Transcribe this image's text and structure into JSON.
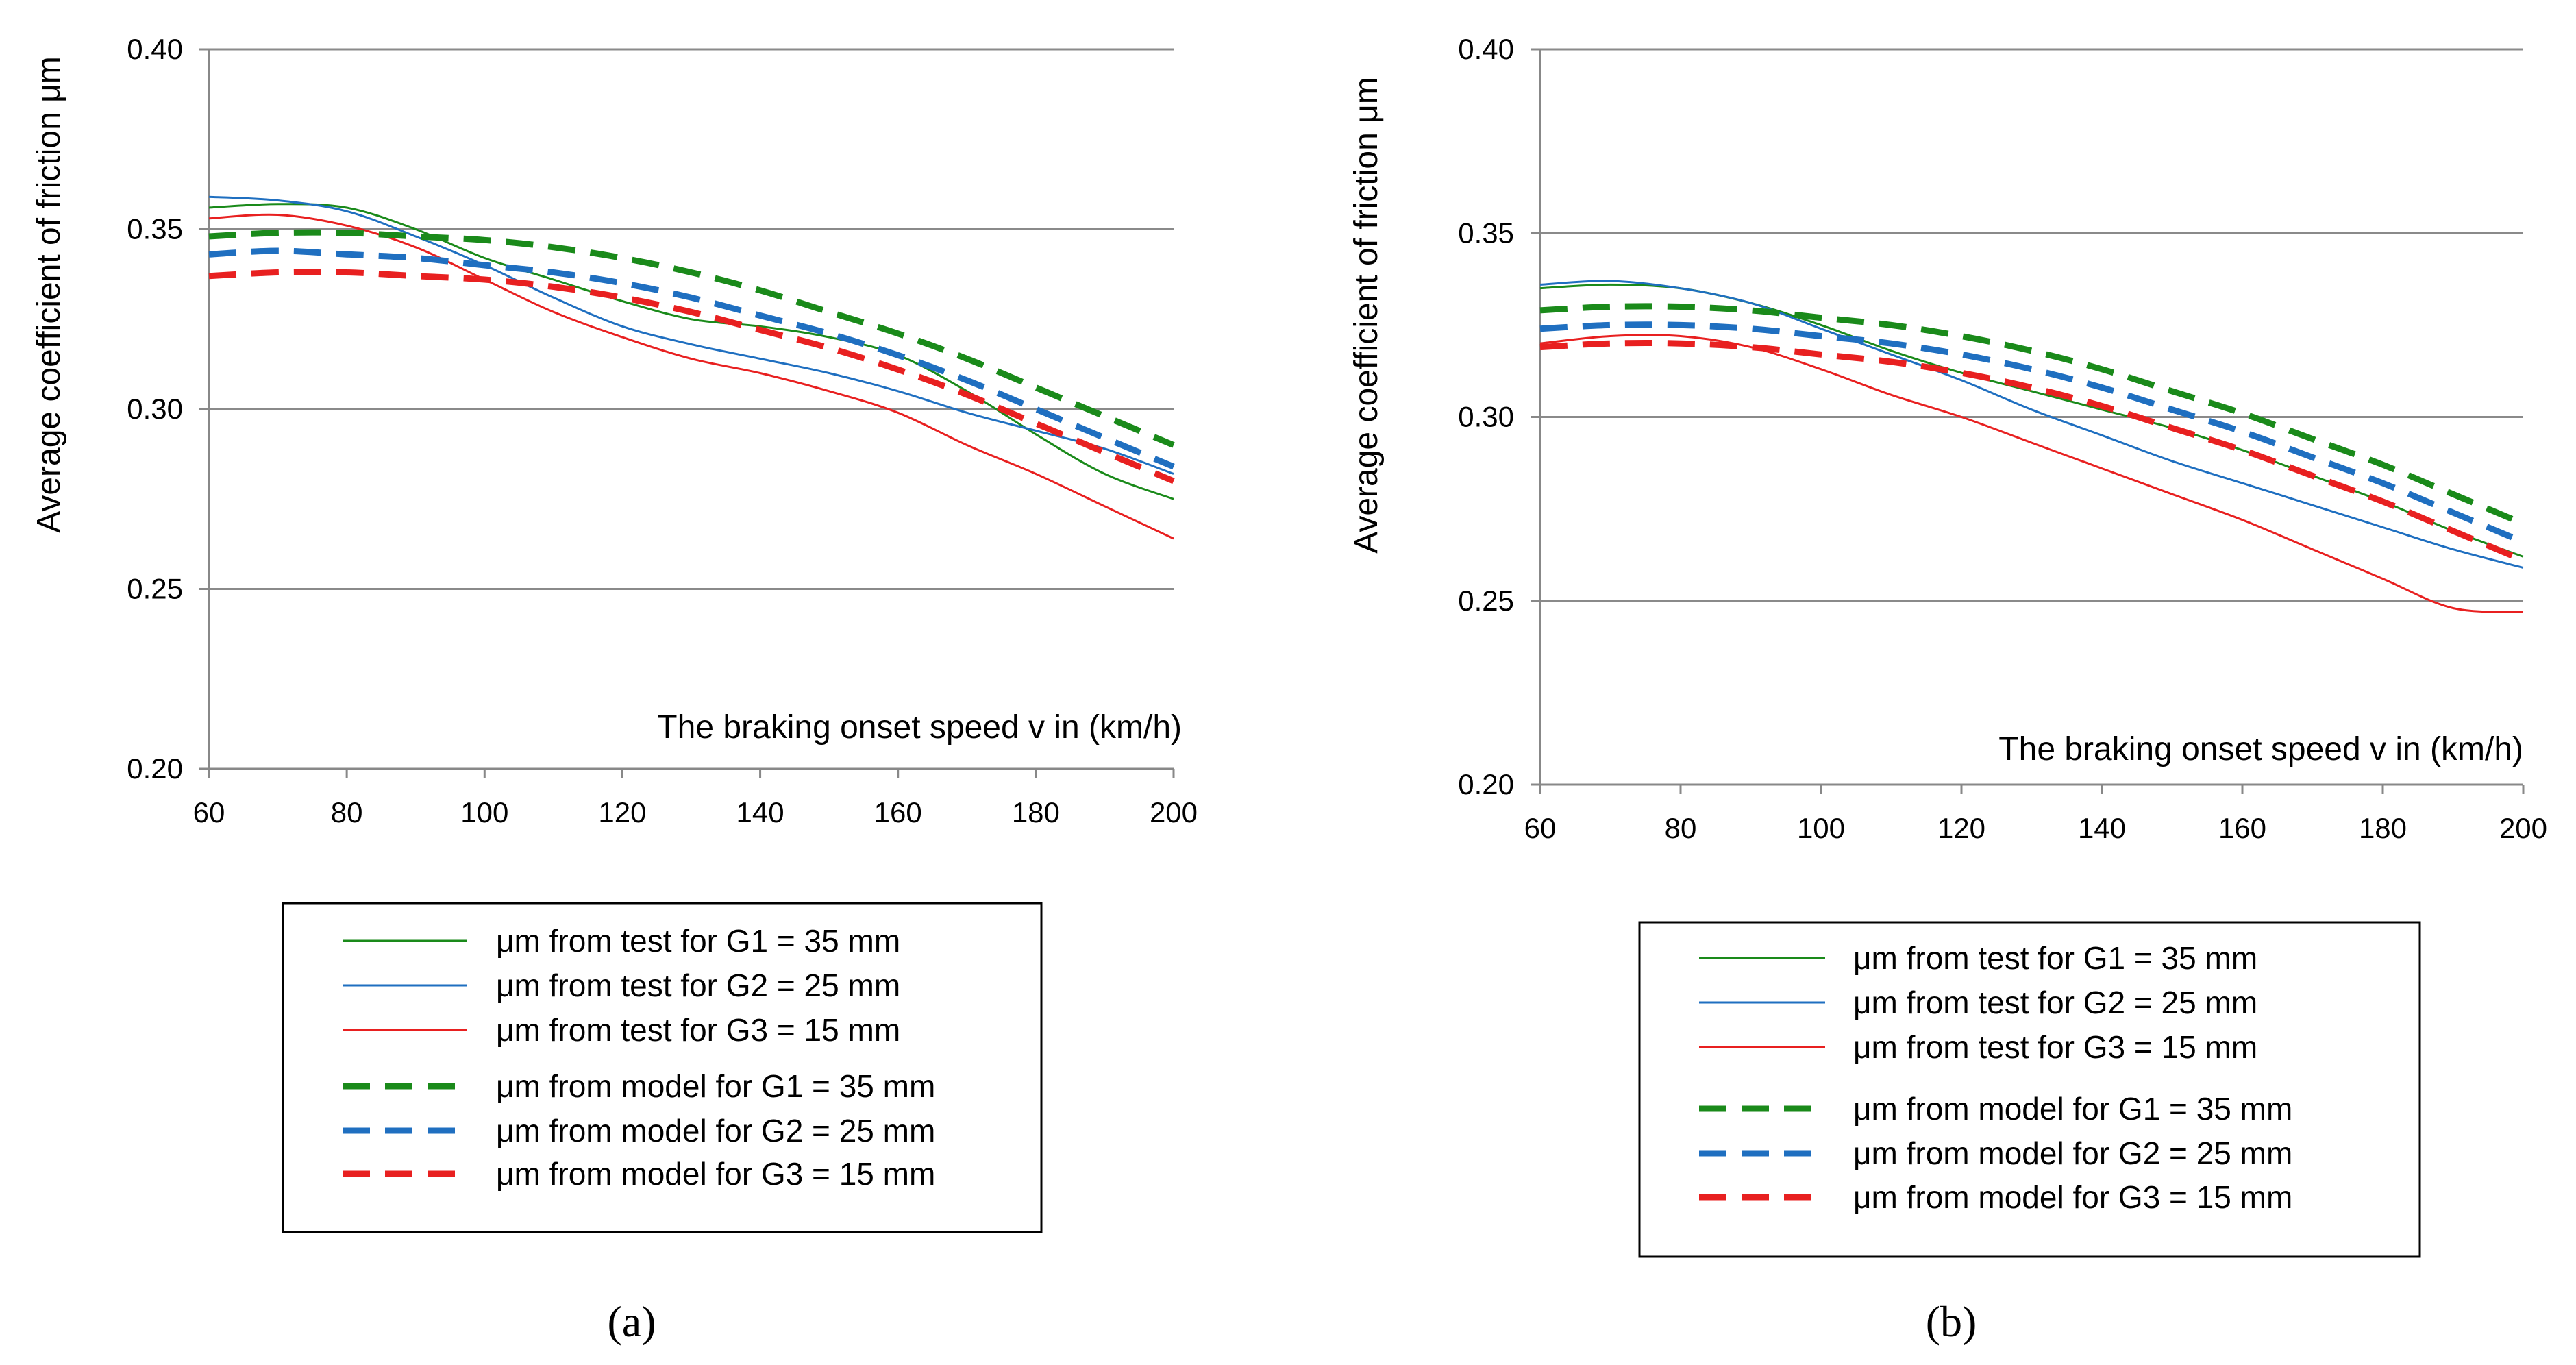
{
  "chart_data": [
    {
      "panel_label": "(a)",
      "type": "line",
      "xlabel": "The braking onset speed v in (km/h)",
      "ylabel": "Average coefficient of friction μm",
      "xlim": [
        60,
        200
      ],
      "ylim": [
        0.2,
        0.4
      ],
      "x_ticks": [
        "60",
        "80",
        "100",
        "120",
        "140",
        "160",
        "180",
        "200"
      ],
      "y_ticks": [
        "0.20",
        "0.25",
        "0.30",
        "0.35",
        "0.40"
      ],
      "grid": "horizontal",
      "series": [
        {
          "name": "μm from test for G1 = 35 mm",
          "color": "#1a8a1a",
          "dash": false,
          "x": [
            60,
            70,
            80,
            90,
            100,
            110,
            120,
            130,
            140,
            150,
            160,
            170,
            180,
            190,
            200
          ],
          "y": [
            0.356,
            0.357,
            0.356,
            0.35,
            0.342,
            0.336,
            0.33,
            0.325,
            0.323,
            0.32,
            0.315,
            0.305,
            0.293,
            0.282,
            0.275
          ]
        },
        {
          "name": "μm from test for G2 = 25 mm",
          "color": "#1f6fc0",
          "dash": false,
          "x": [
            60,
            70,
            80,
            90,
            100,
            110,
            120,
            130,
            140,
            150,
            160,
            170,
            180,
            190,
            200
          ],
          "y": [
            0.359,
            0.358,
            0.355,
            0.348,
            0.34,
            0.331,
            0.323,
            0.318,
            0.314,
            0.31,
            0.305,
            0.299,
            0.294,
            0.289,
            0.282
          ]
        },
        {
          "name": "μm from test for G3 = 15 mm",
          "color": "#e82020",
          "dash": false,
          "x": [
            60,
            70,
            80,
            90,
            100,
            110,
            120,
            130,
            140,
            150,
            160,
            170,
            180,
            190,
            200
          ],
          "y": [
            0.353,
            0.354,
            0.351,
            0.345,
            0.336,
            0.327,
            0.32,
            0.314,
            0.31,
            0.305,
            0.299,
            0.29,
            0.282,
            0.273,
            0.264
          ]
        },
        {
          "name": "μm from model for G1 = 35 mm",
          "color": "#1a8a1a",
          "dash": true,
          "x": [
            60,
            70,
            80,
            90,
            100,
            110,
            120,
            130,
            140,
            150,
            160,
            170,
            180,
            190,
            200
          ],
          "y": [
            0.348,
            0.349,
            0.349,
            0.348,
            0.347,
            0.345,
            0.342,
            0.338,
            0.333,
            0.327,
            0.321,
            0.314,
            0.306,
            0.298,
            0.29
          ]
        },
        {
          "name": "μm from model for G2 = 25 mm",
          "color": "#1f6fc0",
          "dash": true,
          "x": [
            60,
            70,
            80,
            90,
            100,
            110,
            120,
            130,
            140,
            150,
            160,
            170,
            180,
            190,
            200
          ],
          "y": [
            0.343,
            0.344,
            0.343,
            0.342,
            0.34,
            0.338,
            0.335,
            0.331,
            0.326,
            0.321,
            0.315,
            0.308,
            0.3,
            0.292,
            0.284
          ]
        },
        {
          "name": "μm from model for G3 = 15 mm",
          "color": "#e82020",
          "dash": true,
          "x": [
            60,
            70,
            80,
            90,
            100,
            110,
            120,
            130,
            140,
            150,
            160,
            170,
            180,
            190,
            200
          ],
          "y": [
            0.337,
            0.338,
            0.338,
            0.337,
            0.336,
            0.334,
            0.331,
            0.327,
            0.322,
            0.317,
            0.311,
            0.304,
            0.296,
            0.288,
            0.28
          ]
        }
      ]
    },
    {
      "panel_label": "(b)",
      "type": "line",
      "xlabel": "The braking onset speed v in (km/h)",
      "ylabel": "Average coefficient of friction μm",
      "xlim": [
        60,
        200
      ],
      "ylim": [
        0.2,
        0.4
      ],
      "x_ticks": [
        "60",
        "80",
        "100",
        "120",
        "140",
        "160",
        "180",
        "200"
      ],
      "y_ticks": [
        "0.20",
        "0.25",
        "0.30",
        "0.35",
        "0.40"
      ],
      "grid": "horizontal",
      "series": [
        {
          "name": "μm from test for G1 = 35 mm",
          "color": "#1a8a1a",
          "dash": false,
          "x": [
            60,
            70,
            80,
            90,
            100,
            110,
            120,
            130,
            140,
            150,
            160,
            170,
            180,
            190,
            200
          ],
          "y": [
            0.335,
            0.336,
            0.335,
            0.331,
            0.325,
            0.318,
            0.312,
            0.307,
            0.302,
            0.297,
            0.291,
            0.284,
            0.277,
            0.269,
            0.262
          ]
        },
        {
          "name": "μm from test for G2 = 25 mm",
          "color": "#1f6fc0",
          "dash": false,
          "x": [
            60,
            70,
            80,
            90,
            100,
            110,
            120,
            130,
            140,
            150,
            160,
            170,
            180,
            190,
            200
          ],
          "y": [
            0.336,
            0.337,
            0.335,
            0.331,
            0.324,
            0.317,
            0.31,
            0.302,
            0.295,
            0.288,
            0.282,
            0.276,
            0.27,
            0.264,
            0.259
          ]
        },
        {
          "name": "μm from test for G3 = 15 mm",
          "color": "#e82020",
          "dash": false,
          "x": [
            60,
            70,
            80,
            90,
            100,
            110,
            120,
            130,
            140,
            150,
            160,
            170,
            180,
            190,
            200
          ],
          "y": [
            0.32,
            0.322,
            0.322,
            0.319,
            0.313,
            0.306,
            0.3,
            0.293,
            0.286,
            0.279,
            0.272,
            0.264,
            0.256,
            0.248,
            0.247
          ]
        },
        {
          "name": "μm from model for G1 = 35 mm",
          "color": "#1a8a1a",
          "dash": true,
          "x": [
            60,
            70,
            80,
            90,
            100,
            110,
            120,
            130,
            140,
            150,
            160,
            170,
            180,
            190,
            200
          ],
          "y": [
            0.329,
            0.33,
            0.33,
            0.329,
            0.327,
            0.325,
            0.322,
            0.318,
            0.313,
            0.307,
            0.301,
            0.294,
            0.287,
            0.279,
            0.271
          ]
        },
        {
          "name": "μm from model for G2 = 25 mm",
          "color": "#1f6fc0",
          "dash": true,
          "x": [
            60,
            70,
            80,
            90,
            100,
            110,
            120,
            130,
            140,
            150,
            160,
            170,
            180,
            190,
            200
          ],
          "y": [
            0.324,
            0.325,
            0.325,
            0.324,
            0.322,
            0.32,
            0.317,
            0.313,
            0.308,
            0.302,
            0.296,
            0.289,
            0.282,
            0.274,
            0.266
          ]
        },
        {
          "name": "μm from model for G3 = 15 mm",
          "color": "#e82020",
          "dash": true,
          "x": [
            60,
            70,
            80,
            90,
            100,
            110,
            120,
            130,
            140,
            150,
            160,
            170,
            180,
            190,
            200
          ],
          "y": [
            0.319,
            0.32,
            0.32,
            0.319,
            0.317,
            0.315,
            0.312,
            0.308,
            0.303,
            0.297,
            0.291,
            0.284,
            0.277,
            0.269,
            0.261
          ]
        }
      ]
    }
  ]
}
